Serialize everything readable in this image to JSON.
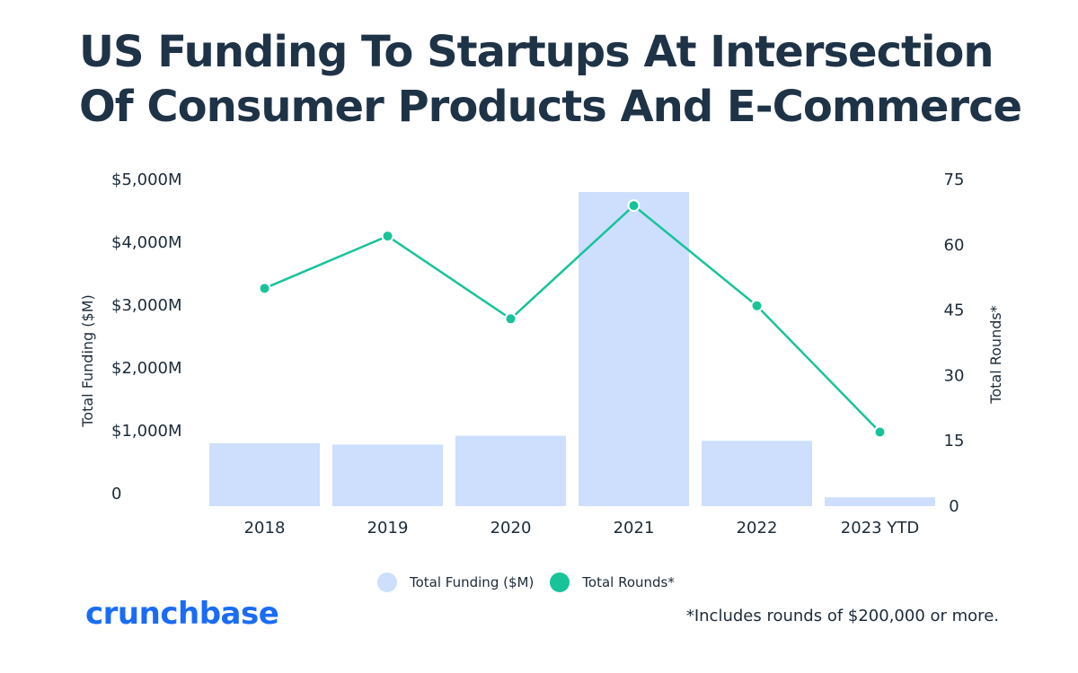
{
  "title": {
    "line1": "US Funding To Startups At Intersection",
    "line2": "Of Consumer Products And E-Commerce"
  },
  "colors": {
    "bar": "#cddffc",
    "line": "#18c39a",
    "title": "#1f3347",
    "brand": "#1a6cf5",
    "text": "#1c2b39"
  },
  "chart_data": {
    "type": "bar+line",
    "categories": [
      "2018",
      "2019",
      "2020",
      "2021",
      "2022",
      "2023 YTD"
    ],
    "series": [
      {
        "name": "Total Funding ($M)",
        "type": "bar",
        "axis": "left",
        "values": [
          1000,
          980,
          1120,
          5000,
          1040,
          140
        ]
      },
      {
        "name": "Total Rounds*",
        "type": "line",
        "axis": "right",
        "values": [
          50,
          62,
          43,
          69,
          46,
          17
        ]
      }
    ],
    "left_axis": {
      "label": "Total Funding ($M)",
      "ylim": [
        0,
        5000
      ],
      "ticks": [
        0,
        1000,
        2000,
        3000,
        4000,
        5000
      ],
      "tick_labels": [
        "0",
        "$1,000M",
        "$2,000M",
        "$3,000M",
        "$4,000M",
        "$5,000M"
      ]
    },
    "right_axis": {
      "label": "Total Rounds*",
      "ylim": [
        0,
        75
      ],
      "ticks": [
        0,
        15,
        30,
        45,
        60,
        75
      ],
      "tick_labels": [
        "0",
        "15",
        "30",
        "45",
        "60",
        "75"
      ]
    },
    "grid": false,
    "legend_position": "bottom-center"
  },
  "legend": {
    "funding_label": "Total Funding ($M)",
    "rounds_label": "Total Rounds*"
  },
  "brand": "crunchbase",
  "footnote": "*Includes rounds of $200,000 or more."
}
